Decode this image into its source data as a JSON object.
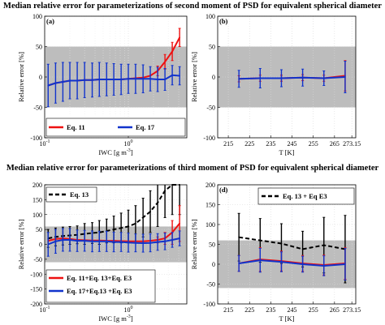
{
  "figure": {
    "row_titles": [
      "Median relative error for parameterizations of second moment of PSD for equivalent spherical diameter",
      "Median relative error for parameterizations of third moment of PSD for equivalent spherical diameter"
    ]
  },
  "colors": {
    "red": "#ee1111",
    "blue": "#1133cc",
    "black": "#000000",
    "shade": "#bdbdbd"
  },
  "chart_data": [
    {
      "panel": "(a)",
      "type": "line",
      "xscale": "log",
      "xlim": [
        0.1,
        5
      ],
      "ylim": [
        -100,
        100
      ],
      "shade": [
        -50,
        50
      ],
      "xticks": [
        0.1,
        1
      ],
      "xticklabels": [
        "10-1",
        "100"
      ],
      "yticks": [
        -100,
        -50,
        0,
        50,
        100
      ],
      "xlabel": "IWC [g m-3]",
      "ylabel": "Relative error [%]",
      "legend": "bottom",
      "series": [
        {
          "name": "Eq. 11",
          "color": "red",
          "x": [
            0.11,
            0.135,
            0.165,
            0.2,
            0.245,
            0.3,
            0.37,
            0.45,
            0.55,
            0.67,
            0.82,
            1.0,
            1.22,
            1.5,
            1.83,
            2.24,
            2.74,
            3.35,
            4.1
          ],
          "y": [
            -14,
            -10,
            -8,
            -6,
            -6,
            -5,
            -5,
            -4,
            -4,
            -4,
            -4,
            -3,
            -2,
            -1,
            2,
            10,
            25,
            42,
            65
          ],
          "err": [
            0,
            0,
            0,
            0,
            0,
            0,
            0,
            0,
            0,
            0,
            0,
            0,
            0,
            0,
            0,
            8,
            12,
            15,
            15
          ]
        },
        {
          "name": "Eq. 17",
          "color": "blue",
          "x": [
            0.11,
            0.135,
            0.165,
            0.2,
            0.245,
            0.3,
            0.37,
            0.45,
            0.55,
            0.67,
            0.82,
            1.0,
            1.22,
            1.5,
            1.83,
            2.24,
            2.74,
            3.35,
            4.1
          ],
          "y": [
            -14,
            -10,
            -8,
            -6,
            -6,
            -5,
            -5,
            -4,
            -4,
            -4,
            -4,
            -3,
            -3,
            -3,
            -3,
            -4,
            -4,
            3,
            2
          ],
          "err": [
            35,
            33,
            32,
            30,
            30,
            29,
            28,
            28,
            27,
            26,
            25,
            24,
            24,
            23,
            20,
            20,
            18,
            16,
            15
          ]
        }
      ]
    },
    {
      "panel": "(b)",
      "type": "line",
      "xlim": [
        210,
        275
      ],
      "ylim": [
        -100,
        100
      ],
      "shade": [
        -50,
        50
      ],
      "xticks": [
        215,
        225,
        235,
        245,
        255,
        265,
        273.15
      ],
      "xticklabels": [
        "215",
        "225",
        "235",
        "245",
        "255",
        "265",
        "273.15"
      ],
      "yticks": [
        -100,
        -50,
        0,
        50,
        100
      ],
      "xlabel": "T [K]",
      "ylabel": "Relative error [%]",
      "series": [
        {
          "name": "",
          "color": "red",
          "x": [
            220,
            230,
            240,
            250,
            260,
            270
          ],
          "y": [
            -3,
            -2,
            -2,
            -1,
            -2,
            2
          ],
          "err": [
            5,
            5,
            5,
            5,
            5,
            25
          ]
        },
        {
          "name": "",
          "color": "blue",
          "x": [
            220,
            230,
            240,
            250,
            260,
            270
          ],
          "y": [
            -3,
            -2,
            -2,
            -1,
            -2,
            0
          ],
          "err": [
            14,
            16,
            14,
            14,
            12,
            26
          ]
        }
      ]
    },
    {
      "panel": "(c)",
      "type": "line",
      "xscale": "log",
      "xlim": [
        0.1,
        5
      ],
      "ylim": [
        -200,
        200
      ],
      "shade": [
        -60,
        60
      ],
      "xticks": [
        0.1,
        1
      ],
      "xticklabels": [
        "10-1",
        "100"
      ],
      "yticks": [
        -200,
        -150,
        -100,
        -50,
        0,
        50,
        100,
        150,
        200
      ],
      "xlabel": "IWC [g m-3]",
      "ylabel": "Relative error [%]",
      "legend": "top-left and bottom",
      "series": [
        {
          "name": "Eq. 13",
          "color": "black",
          "dashed": true,
          "x": [
            0.11,
            0.135,
            0.165,
            0.2,
            0.245,
            0.3,
            0.37,
            0.45,
            0.55,
            0.67,
            0.82,
            1.0,
            1.22,
            1.5,
            1.83,
            2.24,
            2.74,
            3.35,
            4.1
          ],
          "y": [
            20,
            25,
            28,
            30,
            32,
            35,
            38,
            40,
            45,
            50,
            55,
            60,
            70,
            90,
            110,
            140,
            180,
            200,
            200
          ],
          "err": [
            30,
            30,
            30,
            30,
            30,
            35,
            35,
            40,
            40,
            45,
            50,
            55,
            60,
            65,
            70,
            80,
            90,
            100,
            100
          ]
        },
        {
          "name": "Eq. 11+Eq. 13+Eq. E3",
          "color": "red",
          "x": [
            0.11,
            0.135,
            0.165,
            0.2,
            0.245,
            0.3,
            0.37,
            0.45,
            0.55,
            0.67,
            0.82,
            1.0,
            1.22,
            1.5,
            1.83,
            2.24,
            2.74,
            3.35,
            4.1
          ],
          "y": [
            12,
            18,
            20,
            18,
            15,
            14,
            13,
            13,
            12,
            12,
            11,
            10,
            10,
            10,
            12,
            15,
            20,
            40,
            70
          ],
          "err": [
            0,
            0,
            0,
            0,
            0,
            0,
            0,
            0,
            0,
            0,
            0,
            0,
            0,
            0,
            0,
            10,
            20,
            40,
            60
          ]
        },
        {
          "name": "Eq. 17+Eq.13 +Eq. E3",
          "color": "blue",
          "x": [
            0.11,
            0.135,
            0.165,
            0.2,
            0.245,
            0.3,
            0.37,
            0.45,
            0.55,
            0.67,
            0.82,
            1.0,
            1.22,
            1.5,
            1.83,
            2.24,
            2.74,
            3.35,
            4.1
          ],
          "y": [
            0,
            10,
            15,
            15,
            12,
            12,
            10,
            10,
            10,
            8,
            8,
            6,
            5,
            4,
            5,
            8,
            10,
            15,
            20
          ],
          "err": [
            40,
            40,
            38,
            38,
            36,
            35,
            35,
            34,
            34,
            33,
            32,
            32,
            30,
            30,
            30,
            28,
            28,
            25,
            25
          ]
        }
      ]
    },
    {
      "panel": "(d)",
      "type": "line",
      "xlim": [
        210,
        275
      ],
      "ylim": [
        -100,
        200
      ],
      "shade": [
        -60,
        60
      ],
      "xticks": [
        215,
        225,
        235,
        245,
        255,
        265,
        273.15
      ],
      "xticklabels": [
        "215",
        "225",
        "235",
        "245",
        "255",
        "265",
        "273.15"
      ],
      "yticks": [
        -100,
        -50,
        0,
        50,
        100,
        150,
        200
      ],
      "xlabel": "T [K]",
      "ylabel": "Relative error [%]",
      "legend": "top-right",
      "series": [
        {
          "name": "Eq. 13 + Eq E3",
          "color": "black",
          "dashed": true,
          "x": [
            220,
            230,
            240,
            250,
            260,
            270
          ],
          "y": [
            68,
            60,
            52,
            38,
            48,
            38
          ],
          "err": [
            60,
            55,
            50,
            45,
            70,
            85
          ]
        },
        {
          "name": "",
          "color": "red",
          "x": [
            220,
            230,
            240,
            250,
            260,
            270
          ],
          "y": [
            2,
            12,
            8,
            2,
            -2,
            2
          ],
          "err": [
            20,
            30,
            25,
            20,
            25,
            40
          ]
        },
        {
          "name": "",
          "color": "blue",
          "x": [
            220,
            230,
            240,
            250,
            260,
            270
          ],
          "y": [
            2,
            10,
            6,
            0,
            -4,
            0
          ],
          "err": [
            20,
            30,
            25,
            20,
            25,
            40
          ]
        }
      ]
    }
  ]
}
